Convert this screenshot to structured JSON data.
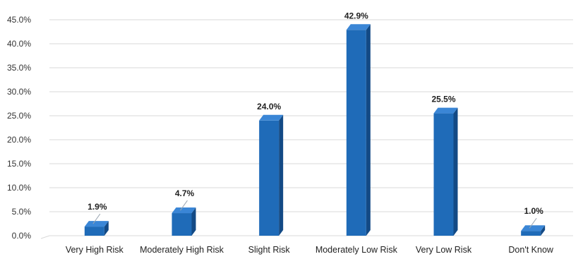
{
  "chart_data": {
    "type": "bar",
    "categories": [
      "Very High Risk",
      "Moderately High Risk",
      "Slight Risk",
      "Moderately Low Risk",
      "Very Low Risk",
      "Don't Know"
    ],
    "values": [
      1.9,
      4.7,
      24.0,
      42.9,
      25.5,
      1.0
    ],
    "data_labels": [
      "1.9%",
      "4.7%",
      "24.0%",
      "42.9%",
      "25.5%",
      "1.0%"
    ],
    "y_ticks": [
      "0.0%",
      "5.0%",
      "10.0%",
      "15.0%",
      "20.0%",
      "25.0%",
      "30.0%",
      "35.0%",
      "40.0%",
      "45.0%"
    ],
    "ylim": [
      0,
      45
    ],
    "grid": true,
    "legend": "none",
    "colors": {
      "bar_front": "#1f6bb8",
      "bar_side": "#134a85",
      "bar_top": "#3a86d6",
      "grid": "#d9d9d9"
    }
  }
}
